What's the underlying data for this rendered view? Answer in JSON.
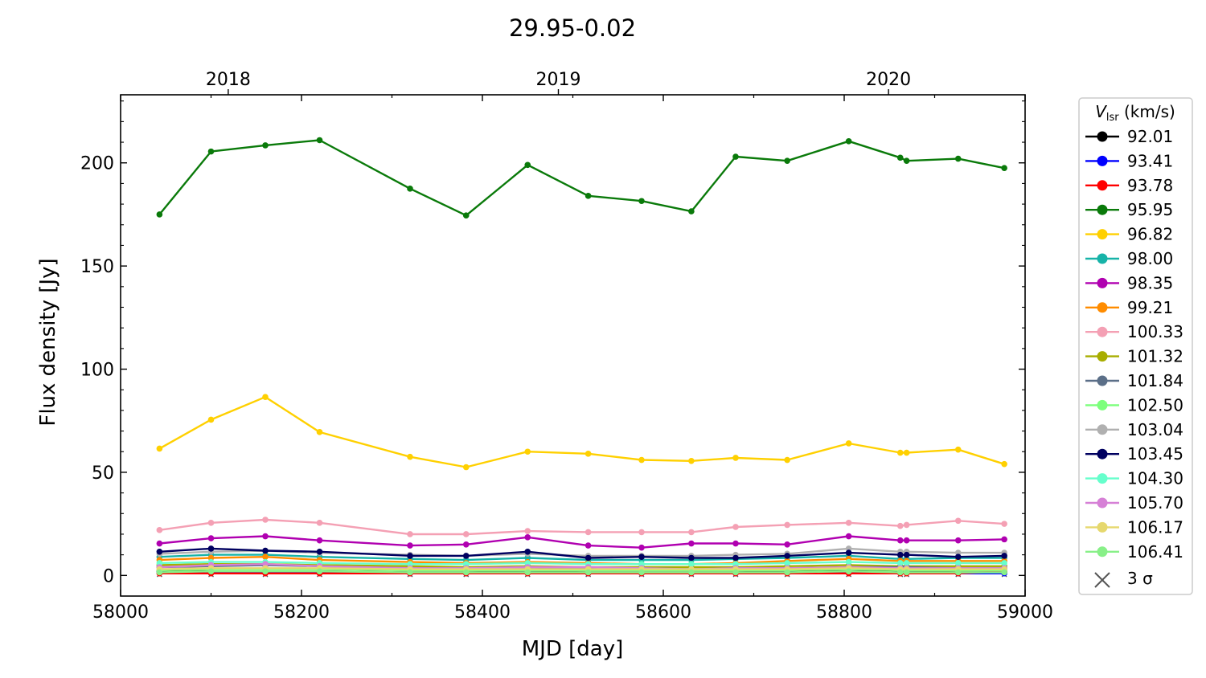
{
  "chart_data": {
    "type": "line",
    "title": "29.95-0.02",
    "xlabel": "MJD [day]",
    "ylabel": "Flux density [Jy]",
    "xlim": [
      58000,
      59000
    ],
    "ylim": [
      -10,
      233
    ],
    "x_ticks": [
      58000,
      58200,
      58400,
      58600,
      58800,
      59000
    ],
    "y_ticks": [
      0,
      50,
      100,
      150,
      200
    ],
    "top_axis": {
      "ticks": [
        {
          "label": "2018",
          "x": 58119
        },
        {
          "label": "2019",
          "x": 58484
        },
        {
          "label": "2020",
          "x": 58849
        }
      ]
    },
    "grid": false,
    "legend": {
      "placement": "right-outside",
      "title_main": "V",
      "title_sub": "lsr",
      "title_unit": " (km/s)",
      "sigma_label": "3 σ"
    },
    "x": [
      58043,
      58100,
      58160,
      58220,
      58320,
      58382,
      58450,
      58517,
      58576,
      58631,
      58680,
      58737,
      58805,
      58862,
      58869,
      58926,
      58977
    ],
    "series": [
      {
        "name": "92.01",
        "color": "#000000",
        "values": [
          2,
          2,
          2,
          2,
          1.5,
          1.5,
          2,
          1.5,
          1.5,
          1.5,
          1.5,
          2,
          2,
          2,
          2,
          1.5,
          1.5
        ]
      },
      {
        "name": "93.41",
        "color": "#0000ff",
        "values": [
          1.5,
          1.5,
          1.5,
          1.5,
          1,
          1,
          1.5,
          1,
          1,
          1,
          1,
          1.5,
          1.5,
          1.5,
          1.5,
          1,
          1
        ]
      },
      {
        "name": "93.78",
        "color": "#ff0000",
        "values": [
          1,
          1,
          1,
          1,
          1,
          1,
          1,
          1,
          1,
          1,
          1,
          1,
          1,
          1,
          1,
          1,
          2
        ]
      },
      {
        "name": "95.95",
        "color": "#0a7a0a",
        "values": [
          175,
          205.5,
          208.5,
          211,
          187.5,
          174.5,
          199,
          184,
          181.5,
          176.5,
          203,
          201,
          210.5,
          202.5,
          201,
          202,
          197.5
        ]
      },
      {
        "name": "96.82",
        "color": "#ffd000",
        "values": [
          61.5,
          75.5,
          86.5,
          69.5,
          57.5,
          52.5,
          60,
          59,
          56,
          55.5,
          57,
          56,
          64,
          59.5,
          59.5,
          61,
          54
        ]
      },
      {
        "name": "98.00",
        "color": "#17b3a8",
        "values": [
          9,
          10,
          10,
          9,
          8,
          7.5,
          8.5,
          7.5,
          7.5,
          7.5,
          8,
          8.5,
          9.5,
          8,
          8,
          8.5,
          8.5
        ]
      },
      {
        "name": "98.35",
        "color": "#b000b0",
        "values": [
          15.5,
          18,
          19,
          17,
          14.5,
          15,
          18.5,
          14.5,
          13.5,
          15.5,
          15.5,
          15,
          19,
          17,
          17,
          17,
          17.5
        ]
      },
      {
        "name": "99.21",
        "color": "#ff8c00",
        "values": [
          7.5,
          8.5,
          9,
          7.5,
          6.5,
          6,
          6.5,
          6,
          5.5,
          5.5,
          6,
          7,
          8,
          7,
          7,
          7,
          7
        ]
      },
      {
        "name": "100.33",
        "color": "#f4a0b4",
        "values": [
          22,
          25.5,
          27,
          25.5,
          20,
          20,
          21.5,
          21,
          21,
          21,
          23.5,
          24.5,
          25.5,
          24,
          24.5,
          26.5,
          25
        ]
      },
      {
        "name": "101.32",
        "color": "#a8ad00",
        "values": [
          5,
          5.5,
          5.5,
          5,
          4.5,
          4,
          4.5,
          4,
          4,
          4,
          4,
          4.5,
          5,
          4.5,
          4.5,
          4.5,
          4.5
        ]
      },
      {
        "name": "101.84",
        "color": "#5b6f88",
        "values": [
          4,
          4.5,
          5,
          4.5,
          3.5,
          3.5,
          4,
          3.5,
          3.5,
          3,
          3.5,
          3.5,
          4,
          4,
          4,
          3.5,
          3.5
        ]
      },
      {
        "name": "102.50",
        "color": "#7cff7c",
        "values": [
          2.5,
          3,
          3,
          3,
          2.5,
          2.5,
          2.5,
          2.5,
          2.5,
          2.5,
          2.5,
          2.5,
          3,
          2.5,
          2.5,
          2.5,
          2.5
        ]
      },
      {
        "name": "103.04",
        "color": "#b0b0b0",
        "values": [
          10.5,
          11.5,
          12,
          11,
          10,
          9.5,
          10.5,
          9.5,
          9.5,
          9.5,
          10,
          10.5,
          13,
          11.5,
          11.5,
          11,
          11
        ]
      },
      {
        "name": "103.45",
        "color": "#000060",
        "values": [
          11.5,
          13,
          12,
          11.5,
          9.5,
          9.5,
          11.5,
          8.5,
          9,
          8.5,
          8.5,
          9.5,
          11,
          10,
          10,
          9,
          9.5
        ]
      },
      {
        "name": "104.30",
        "color": "#66ffcc",
        "values": [
          6,
          6.5,
          6.5,
          6,
          5.5,
          5.5,
          6,
          5.5,
          5.5,
          5.5,
          5.5,
          6,
          6.5,
          6,
          6,
          6,
          6
        ]
      },
      {
        "name": "105.70",
        "color": "#d680d6",
        "values": [
          4,
          5,
          5.5,
          4.5,
          3.5,
          3.5,
          4,
          4,
          3.5,
          3,
          3.5,
          3.5,
          4,
          3.5,
          3.5,
          3.5,
          3.5
        ]
      },
      {
        "name": "106.17",
        "color": "#e6d86e",
        "values": [
          3,
          3.5,
          3.5,
          3.5,
          3,
          3,
          3,
          3,
          3,
          3,
          3,
          3,
          3.5,
          3,
          3,
          3,
          3
        ]
      },
      {
        "name": "106.41",
        "color": "#88f088",
        "values": [
          1.5,
          2,
          2,
          2,
          1.5,
          1.5,
          1.5,
          1.5,
          1.5,
          1.5,
          1.5,
          1.5,
          2,
          1.5,
          1.5,
          1.5,
          1.5
        ]
      }
    ],
    "sigma3": {
      "color": "#555555",
      "values": [
        0.5,
        0.5,
        0.5,
        0.5,
        0.5,
        0.5,
        0.5,
        0.5,
        0.5,
        0.5,
        0.5,
        0.5,
        0.5,
        0.5,
        0.5,
        0.5,
        0.5
      ]
    }
  }
}
